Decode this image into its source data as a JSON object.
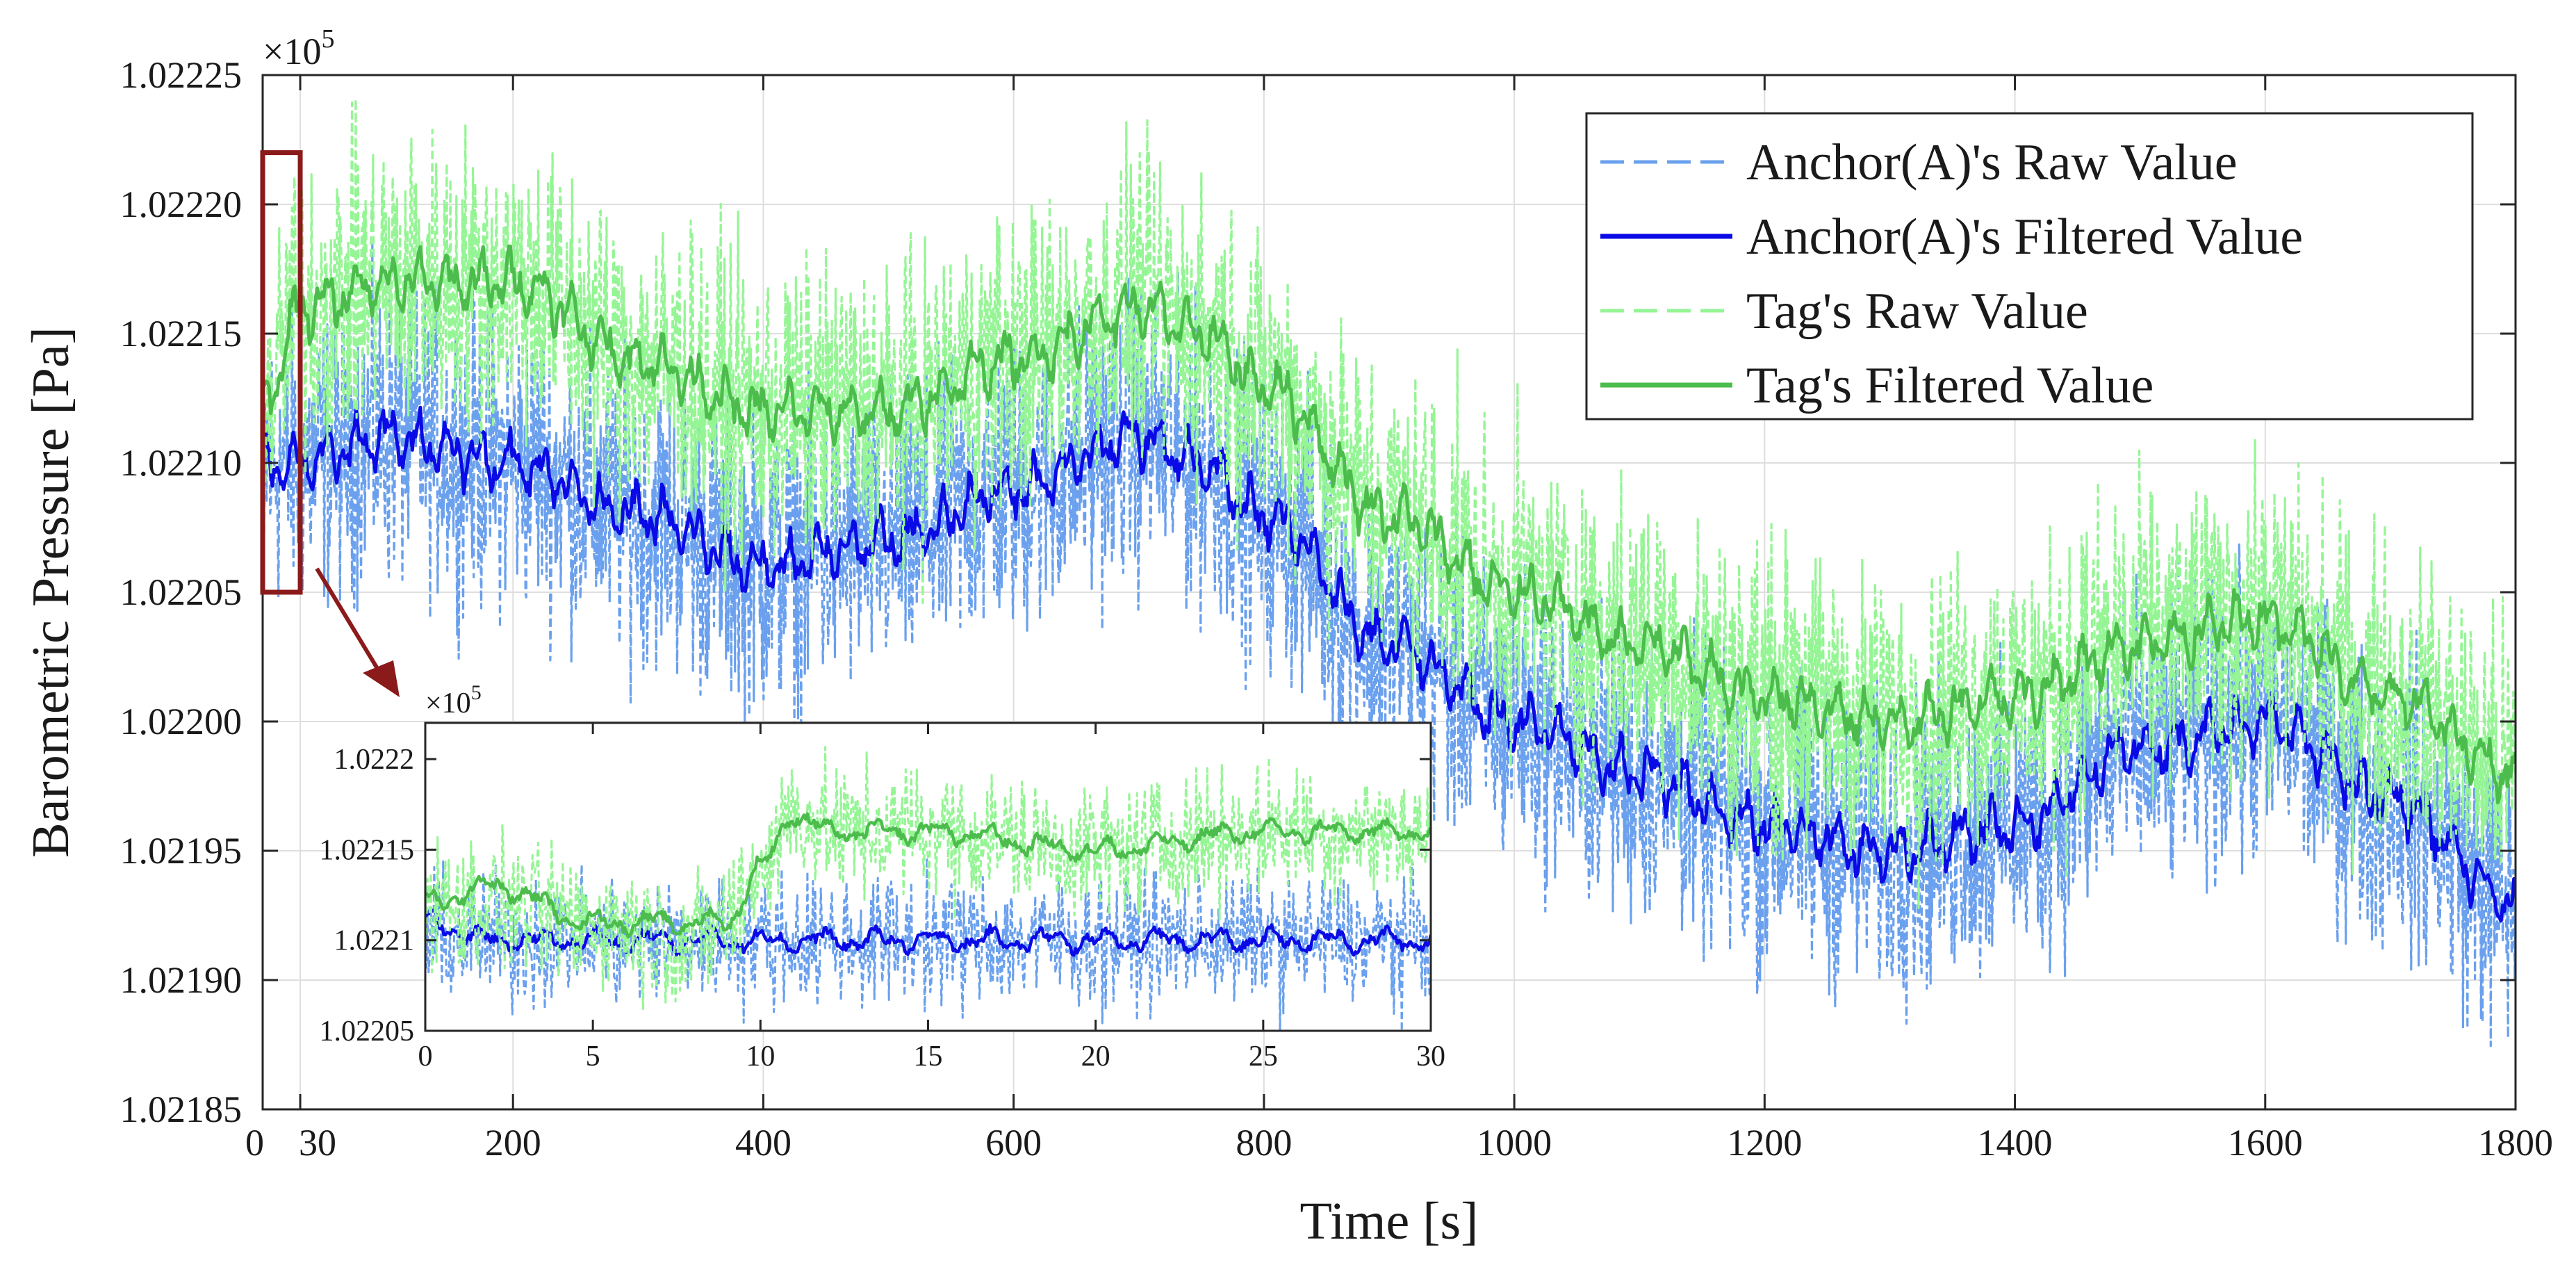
{
  "chart_data": {
    "type": "line",
    "main": {
      "xlabel": "Time [s]",
      "ylabel": "Barometric Pressure [Pa]",
      "exponent_label": "×10",
      "exponent_power": "5",
      "xlim": [
        0,
        1800
      ],
      "ylim": [
        1.02185,
        1.02225
      ],
      "x_ticks": [
        0,
        30,
        200,
        400,
        600,
        800,
        1000,
        1200,
        1400,
        1600,
        1800
      ],
      "x_tick_labels": [
        "0",
        "30",
        "200",
        "400",
        "600",
        "800",
        "1000",
        "1200",
        "1400",
        "1600",
        "1800"
      ],
      "y_ticks": [
        1.02185,
        1.0219,
        1.02195,
        1.022,
        1.02205,
        1.0221,
        1.02215,
        1.0222,
        1.02225
      ],
      "y_tick_labels": [
        "1.02185",
        "1.02190",
        "1.02195",
        "1.02200",
        "1.02205",
        "1.02210",
        "1.02215",
        "1.02220",
        "1.02225"
      ],
      "grid": true,
      "legend_position": "top-right",
      "highlight_region": {
        "x": [
          0,
          30
        ],
        "y": [
          1.02205,
          1.02222
        ],
        "color": "#8b1a1a"
      },
      "series": [
        {
          "name": "Anchor(A)'s Raw Value",
          "style": "dashed",
          "color": "#6aa0ee",
          "noise": 3.5e-05,
          "x": [
            0,
            30,
            100,
            200,
            300,
            400,
            500,
            600,
            700,
            750,
            800,
            900,
            1000,
            1100,
            1200,
            1300,
            1400,
            1500,
            1600,
            1700,
            1800
          ],
          "y": [
            1.0221,
            1.0221,
            1.02211,
            1.0221,
            1.02208,
            1.02206,
            1.02207,
            1.02209,
            1.02211,
            1.0221,
            1.02208,
            1.02203,
            1.022,
            1.02198,
            1.02196,
            1.02195,
            1.02196,
            1.02199,
            1.022,
            1.02197,
            1.02193
          ]
        },
        {
          "name": "Anchor(A)'s Filtered Value",
          "style": "solid",
          "color": "#0a0ae6",
          "noise": 7e-06,
          "x": [
            0,
            30,
            100,
            200,
            300,
            400,
            500,
            600,
            700,
            750,
            800,
            900,
            1000,
            1100,
            1200,
            1300,
            1400,
            1500,
            1600,
            1700,
            1800
          ],
          "y": [
            1.0221,
            1.0221,
            1.02211,
            1.0221,
            1.02208,
            1.02206,
            1.02207,
            1.02209,
            1.02211,
            1.0221,
            1.02208,
            1.02203,
            1.022,
            1.02198,
            1.02196,
            1.02195,
            1.02196,
            1.02199,
            1.022,
            1.02197,
            1.02193
          ]
        },
        {
          "name": "Tag's Raw Value",
          "style": "dashed",
          "color": "#95f595",
          "noise": 3.5e-05,
          "x": [
            0,
            30,
            100,
            200,
            300,
            400,
            500,
            600,
            700,
            750,
            800,
            900,
            1000,
            1100,
            1200,
            1300,
            1400,
            1500,
            1600,
            1700,
            1800
          ],
          "y": [
            1.02212,
            1.02216,
            1.02217,
            1.02217,
            1.02214,
            1.02212,
            1.02212,
            1.02214,
            1.02216,
            1.02215,
            1.02213,
            1.02208,
            1.02205,
            1.02203,
            1.02201,
            1.022,
            1.02201,
            1.02203,
            1.02204,
            1.02201,
            1.02198
          ]
        },
        {
          "name": "Tag's Filtered Value",
          "style": "solid",
          "color": "#4cbc4c",
          "noise": 7e-06,
          "x": [
            0,
            30,
            100,
            200,
            300,
            400,
            500,
            600,
            700,
            750,
            800,
            900,
            1000,
            1100,
            1200,
            1300,
            1400,
            1500,
            1600,
            1700,
            1800
          ],
          "y": [
            1.02212,
            1.02216,
            1.02217,
            1.02217,
            1.02214,
            1.02212,
            1.02212,
            1.02214,
            1.02216,
            1.02215,
            1.02213,
            1.02208,
            1.02205,
            1.02203,
            1.02201,
            1.022,
            1.02201,
            1.02203,
            1.02204,
            1.02201,
            1.02198
          ]
        }
      ]
    },
    "inset": {
      "exponent_label": "×10",
      "exponent_power": "5",
      "xlim": [
        0,
        30
      ],
      "ylim": [
        1.02205,
        1.02222
      ],
      "x_ticks": [
        0,
        5,
        10,
        15,
        20,
        25,
        30
      ],
      "x_tick_labels": [
        "0",
        "5",
        "10",
        "15",
        "20",
        "25",
        "30"
      ],
      "y_ticks": [
        1.02205,
        1.0221,
        1.02215,
        1.0222
      ],
      "y_tick_labels": [
        "1.02205",
        "1.0221",
        "1.02215",
        "1.0222"
      ],
      "series": [
        {
          "name": "Anchor(A)'s Raw Value",
          "style": "dashed",
          "color": "#6aa0ee",
          "noise": 2.2e-05,
          "x": [
            0,
            2,
            5,
            8,
            9,
            10,
            15,
            20,
            25,
            30
          ],
          "y": [
            1.0221,
            1.0221,
            1.0221,
            1.0221,
            1.0221,
            1.0221,
            1.0221,
            1.0221,
            1.0221,
            1.0221
          ]
        },
        {
          "name": "Anchor(A)'s Filtered Value",
          "style": "solid",
          "color": "#0a0ae6",
          "noise": 4e-06,
          "x": [
            0,
            2,
            5,
            8,
            9,
            10,
            15,
            20,
            25,
            30
          ],
          "y": [
            1.02211,
            1.0221,
            1.0221,
            1.0221,
            1.0221,
            1.0221,
            1.0221,
            1.0221,
            1.0221,
            1.0221
          ]
        },
        {
          "name": "Tag's Raw Value",
          "style": "dashed",
          "color": "#95f595",
          "noise": 2.2e-05,
          "x": [
            0,
            2,
            5,
            8,
            9,
            10,
            11,
            12,
            15,
            20,
            25,
            30
          ],
          "y": [
            1.02212,
            1.02212,
            1.02211,
            1.0221,
            1.02211,
            1.02214,
            1.02217,
            1.02216,
            1.02216,
            1.02215,
            1.02216,
            1.02216
          ]
        },
        {
          "name": "Tag's Filtered Value",
          "style": "solid",
          "color": "#4cbc4c",
          "noise": 4e-06,
          "x": [
            0,
            2,
            5,
            8,
            9,
            10,
            11,
            12,
            15,
            20,
            25,
            30
          ],
          "y": [
            1.02212,
            1.02213,
            1.02211,
            1.02211,
            1.02211,
            1.02214,
            1.02217,
            1.02216,
            1.02216,
            1.02215,
            1.02216,
            1.02216
          ]
        }
      ]
    }
  }
}
